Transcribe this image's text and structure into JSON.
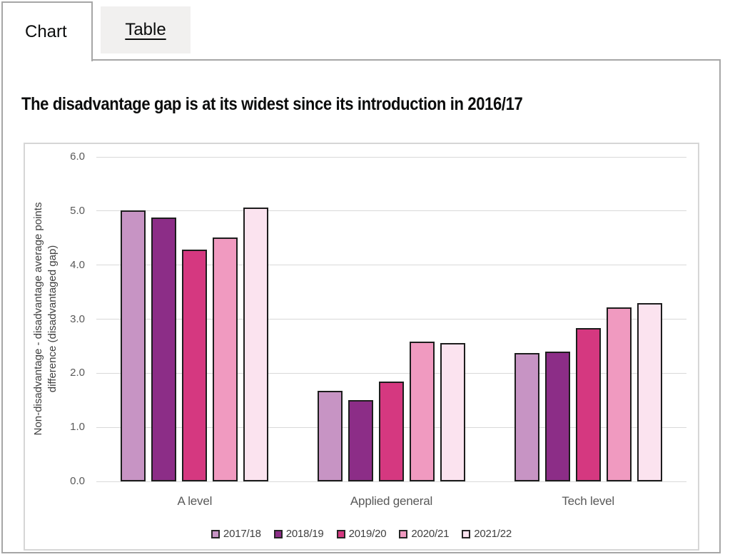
{
  "tabs": {
    "chart_label": "Chart",
    "table_label": "Table"
  },
  "chart_data": {
    "type": "bar",
    "title": "The disadvantage gap is at its widest since its introduction in 2016/17",
    "categories": [
      "A level",
      "Applied general",
      "Tech level"
    ],
    "series": [
      {
        "name": "2017/18",
        "color": "#C794C4",
        "values": [
          5.01,
          1.68,
          2.37
        ]
      },
      {
        "name": "2018/19",
        "color": "#8C2D87",
        "values": [
          4.88,
          1.51,
          2.4
        ]
      },
      {
        "name": "2019/20",
        "color": "#D53880",
        "values": [
          4.29,
          1.84,
          2.83
        ]
      },
      {
        "name": "2020/21",
        "color": "#F09AC0",
        "values": [
          4.51,
          2.58,
          3.22
        ]
      },
      {
        "name": "2021/22",
        "color": "#FBE3EF",
        "values": [
          5.07,
          2.56,
          3.3
        ]
      }
    ],
    "ylabel_line1": "Non-disadvantage - disadvantage average points",
    "ylabel_line2": "difference (disadvantaged gap)",
    "xlabel": "",
    "yticks": [
      "0.0",
      "1.0",
      "2.0",
      "3.0",
      "4.0",
      "5.0",
      "6.0"
    ],
    "ylim": [
      0,
      6
    ],
    "grid": true,
    "legend_position": "bottom",
    "bar_border_color": "#1d1d1d",
    "colors": {
      "tick_text": "#595959",
      "axis_title_text": "#404040",
      "gridline": "#d9d9d9"
    }
  }
}
